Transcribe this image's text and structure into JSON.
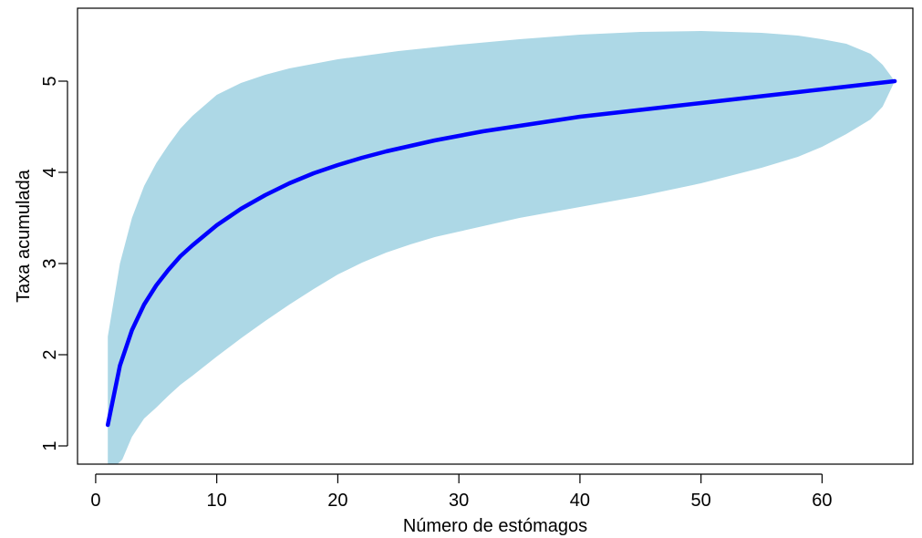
{
  "chart_data": {
    "type": "area",
    "title": "",
    "xlabel": "Número de estómagos",
    "ylabel": "Taxa acumulada",
    "xlim": [
      -1.5,
      67.5
    ],
    "ylim": [
      0.8,
      5.8
    ],
    "xticks": [
      0,
      10,
      20,
      30,
      40,
      50,
      60
    ],
    "yticks": [
      1,
      2,
      3,
      4,
      5
    ],
    "xtick_labels": [
      "0",
      "10",
      "20",
      "30",
      "40",
      "50",
      "60"
    ],
    "ytick_labels": [
      "1",
      "2",
      "3",
      "4",
      "5"
    ],
    "grid": false,
    "legend": "none",
    "colors": {
      "band": "#add8e6",
      "mean": "#0000ff",
      "axes": "#000000"
    },
    "series": [
      {
        "role": "accumulated-mean",
        "x": [
          1,
          2,
          3,
          4,
          5,
          6,
          7,
          8,
          9,
          10,
          12,
          14,
          16,
          18,
          20,
          22,
          24,
          26,
          28,
          30,
          32,
          34,
          36,
          38,
          40,
          42,
          44,
          46,
          48,
          50,
          52,
          54,
          56,
          58,
          60,
          62,
          64,
          66
        ],
        "y": [
          1.23,
          1.88,
          2.27,
          2.55,
          2.76,
          2.93,
          3.08,
          3.2,
          3.31,
          3.42,
          3.6,
          3.75,
          3.88,
          3.99,
          4.08,
          4.16,
          4.23,
          4.29,
          4.35,
          4.4,
          4.45,
          4.49,
          4.53,
          4.57,
          4.61,
          4.64,
          4.67,
          4.7,
          4.73,
          4.76,
          4.79,
          4.82,
          4.85,
          4.88,
          4.91,
          4.94,
          4.97,
          5.0
        ]
      },
      {
        "role": "upper-bound",
        "x": [
          1,
          2,
          3,
          4,
          5,
          6,
          7,
          8,
          10,
          12,
          14,
          16,
          18,
          20,
          25,
          30,
          35,
          40,
          45,
          50,
          55,
          58,
          60,
          62,
          64,
          65,
          66
        ],
        "y": [
          2.2,
          3.0,
          3.5,
          3.85,
          4.1,
          4.3,
          4.48,
          4.62,
          4.85,
          4.98,
          5.07,
          5.14,
          5.19,
          5.24,
          5.33,
          5.4,
          5.46,
          5.51,
          5.54,
          5.55,
          5.53,
          5.5,
          5.46,
          5.41,
          5.3,
          5.18,
          5.0
        ]
      },
      {
        "role": "lower-bound",
        "x": [
          1,
          1.8,
          2.2,
          3,
          4,
          5,
          6,
          7,
          8,
          10,
          12,
          14,
          16,
          18,
          20,
          22,
          24,
          26,
          28,
          30,
          35,
          40,
          45,
          50,
          55,
          58,
          60,
          62,
          64,
          65,
          66
        ],
        "y": [
          0.8,
          0.8,
          0.85,
          1.1,
          1.3,
          1.42,
          1.55,
          1.67,
          1.77,
          1.98,
          2.18,
          2.37,
          2.55,
          2.72,
          2.88,
          3.01,
          3.12,
          3.21,
          3.29,
          3.35,
          3.5,
          3.62,
          3.74,
          3.88,
          4.05,
          4.17,
          4.28,
          4.42,
          4.58,
          4.72,
          5.0
        ]
      }
    ]
  }
}
